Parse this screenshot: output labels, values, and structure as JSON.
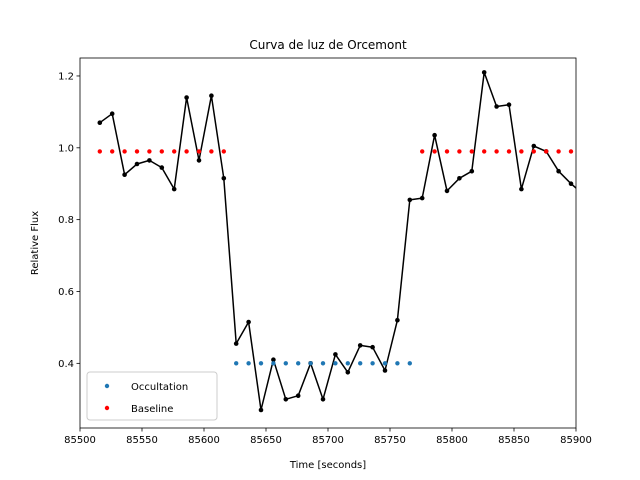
{
  "chart_data": {
    "type": "line",
    "title": "Curva de luz de Orcemont",
    "xlabel": "Time [seconds]",
    "ylabel": "Relative Flux",
    "xlim": [
      85500,
      85900
    ],
    "ylim": [
      0.22,
      1.25
    ],
    "xticks": [
      85500,
      85550,
      85600,
      85650,
      85700,
      85750,
      85800,
      85850,
      85900
    ],
    "yticks": [
      0.4,
      0.6,
      0.8,
      1.0,
      1.2
    ],
    "xtick_labels": [
      "85500",
      "85550",
      "85600",
      "85650",
      "85700",
      "85750",
      "85800",
      "85850",
      "85900"
    ],
    "ytick_labels": [
      "0.4",
      "0.6",
      "0.8",
      "1.0",
      "1.2"
    ],
    "grid": false,
    "legend_position": "lower-left",
    "legend": [
      "Occultation",
      "Baseline"
    ],
    "series": [
      {
        "name": "",
        "style": "line-with-markers",
        "color": "#000000",
        "x": [
          85516,
          85526,
          85536,
          85546,
          85556,
          85566,
          85576,
          85586,
          85596,
          85606,
          85616,
          85626,
          85636,
          85646,
          85656,
          85666,
          85676,
          85686,
          85696,
          85706,
          85716,
          85726,
          85736,
          85746,
          85756,
          85766,
          85776,
          85786,
          85796,
          85806,
          85816,
          85826,
          85836,
          85846,
          85856,
          85866,
          85876,
          85886,
          85896,
          85906
        ],
        "y": [
          1.07,
          1.095,
          0.925,
          0.955,
          0.965,
          0.945,
          0.885,
          1.14,
          0.965,
          1.145,
          0.915,
          0.455,
          0.515,
          0.27,
          0.41,
          0.3,
          0.31,
          0.4,
          0.3,
          0.425,
          0.375,
          0.45,
          0.445,
          0.38,
          0.52,
          0.855,
          0.86,
          1.035,
          0.88,
          0.915,
          0.935,
          1.21,
          1.115,
          1.12,
          0.885,
          1.005,
          0.99,
          0.935,
          0.9,
          0.87
        ]
      },
      {
        "name": "Occultation",
        "style": "dots",
        "color": "#1f77b4",
        "x": [
          85626,
          85636,
          85646,
          85656,
          85666,
          85676,
          85686,
          85696,
          85706,
          85716,
          85726,
          85736,
          85746,
          85756,
          85766
        ],
        "y": [
          0.4,
          0.4,
          0.4,
          0.4,
          0.4,
          0.4,
          0.4,
          0.4,
          0.4,
          0.4,
          0.4,
          0.4,
          0.4,
          0.4,
          0.4
        ]
      },
      {
        "name": "Baseline",
        "style": "dots",
        "color": "#ff0000",
        "x": [
          85516,
          85526,
          85536,
          85546,
          85556,
          85566,
          85576,
          85586,
          85596,
          85606,
          85616,
          85776,
          85786,
          85796,
          85806,
          85816,
          85826,
          85836,
          85846,
          85856,
          85866,
          85876,
          85886,
          85896
        ],
        "y": [
          0.99,
          0.99,
          0.99,
          0.99,
          0.99,
          0.99,
          0.99,
          0.99,
          0.99,
          0.99,
          0.99,
          0.99,
          0.99,
          0.99,
          0.99,
          0.99,
          0.99,
          0.99,
          0.99,
          0.99,
          0.99,
          0.99,
          0.99,
          0.99
        ]
      }
    ]
  }
}
